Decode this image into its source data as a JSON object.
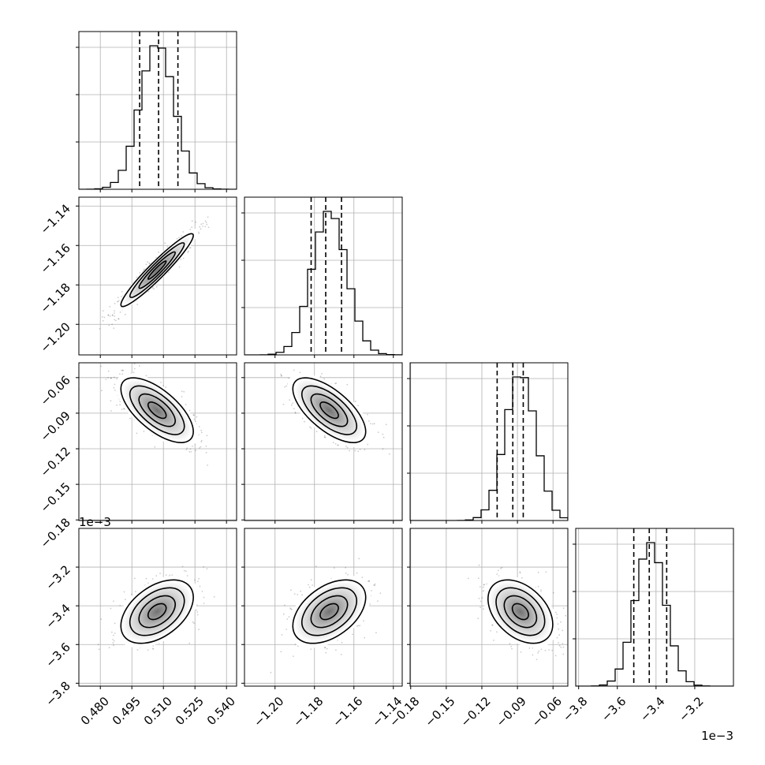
{
  "chart_data": {
    "type": "corner",
    "parameters": [
      {
        "index": 0,
        "range": [
          0.4698,
          0.5448
        ],
        "ticks": [
          0.48,
          0.495,
          0.51,
          0.525,
          0.54
        ],
        "tick_labels": [
          "0.480",
          "0.495",
          "0.510",
          "0.525",
          "0.540"
        ],
        "mean": 0.507,
        "sd": 0.0082,
        "quantiles": [
          0.4987,
          0.5077,
          0.5169
        ],
        "offset_text": ""
      },
      {
        "index": 1,
        "range": [
          -1.2155,
          -1.1355
        ],
        "ticks": [
          -1.2,
          -1.18,
          -1.16,
          -1.14
        ],
        "tick_labels": [
          "−1.20",
          "−1.18",
          "−1.16",
          "−1.14"
        ],
        "mean": -1.1725,
        "sd": 0.0088,
        "quantiles": [
          -1.1817,
          -1.1743,
          -1.1663
        ],
        "offset_text": ""
      },
      {
        "index": 2,
        "range": [
          -0.1805,
          -0.0475
        ],
        "ticks": [
          -0.18,
          -0.15,
          -0.12,
          -0.09,
          -0.06
        ],
        "tick_labels": [
          "−0.18",
          "−0.15",
          "−0.12",
          "−0.09",
          "−0.06"
        ],
        "mean": -0.0875,
        "sd": 0.013,
        "quantiles": [
          -0.1071,
          -0.0939,
          -0.0851
        ],
        "offset_text": ""
      },
      {
        "index": 3,
        "range": [
          -3.815,
          -3.0
        ],
        "ticks": [
          -3.8,
          -3.6,
          -3.4,
          -3.2
        ],
        "tick_labels": [
          "−3.8",
          "−3.6",
          "−3.4",
          "−3.2"
        ],
        "mean": -3.43,
        "sd": 0.078,
        "quantiles": [
          -3.515,
          -3.435,
          -3.345
        ],
        "offset_text": "1e−3"
      }
    ],
    "correlations": {
      "1-0": 0.95,
      "2-0": -0.66,
      "2-1": -0.66,
      "3-0": 0.45,
      "3-1": 0.45,
      "3-2": -0.4
    },
    "histogram_bins": 20,
    "quantile_levels": [
      0.16,
      0.5,
      0.84
    ],
    "contour_levels_sigma": [
      0.5,
      1.0,
      1.5,
      2.0
    ],
    "grid": true,
    "xlabel": "",
    "ylabel": "",
    "title": ""
  }
}
